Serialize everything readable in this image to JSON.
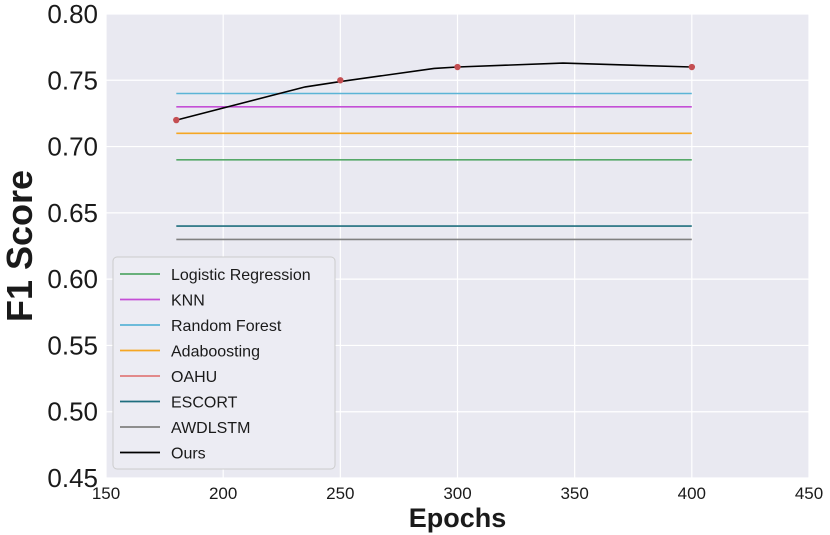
{
  "chart_data": {
    "type": "line",
    "title": "",
    "xlabel": "Epochs",
    "ylabel": "F1 Score",
    "xlim": [
      150,
      450
    ],
    "ylim": [
      0.45,
      0.8
    ],
    "xticks": [
      "150",
      "200",
      "250",
      "300",
      "350",
      "400",
      "450"
    ],
    "yticks": [
      "0.45",
      "0.50",
      "0.55",
      "0.60",
      "0.65",
      "0.70",
      "0.75",
      "0.80"
    ],
    "grid": true,
    "background": "#e9e9f1",
    "legend_position": "lower-left",
    "series": [
      {
        "name": "Logistic Regression",
        "color": "#55a868",
        "x": [
          180,
          400
        ],
        "y": [
          0.69,
          0.69
        ]
      },
      {
        "name": "KNN",
        "color": "#c44fd6",
        "x": [
          180,
          400
        ],
        "y": [
          0.73,
          0.73
        ]
      },
      {
        "name": "Random Forest",
        "color": "#5bb4d6",
        "x": [
          180,
          400
        ],
        "y": [
          0.74,
          0.74
        ]
      },
      {
        "name": "Adaboosting",
        "color": "#f5a623",
        "x": [
          180,
          400
        ],
        "y": [
          0.71,
          0.71
        ]
      },
      {
        "name": "OAHU",
        "color": "#e07b7b",
        "x": [],
        "y": []
      },
      {
        "name": "ESCORT",
        "color": "#1f6e7e",
        "x": [
          180,
          400
        ],
        "y": [
          0.64,
          0.64
        ]
      },
      {
        "name": "AWDLSTM",
        "color": "#808080",
        "x": [
          180,
          400
        ],
        "y": [
          0.63,
          0.63
        ]
      },
      {
        "name": "Ours",
        "color": "#000000",
        "x": [
          180,
          235,
          250,
          290,
          300,
          345,
          400
        ],
        "y": [
          0.72,
          0.745,
          0.749,
          0.759,
          0.76,
          0.763,
          0.76
        ],
        "markers": {
          "color": "#c44e52",
          "x": [
            180,
            250,
            300,
            400
          ],
          "y": [
            0.72,
            0.75,
            0.76,
            0.76
          ]
        }
      }
    ]
  }
}
